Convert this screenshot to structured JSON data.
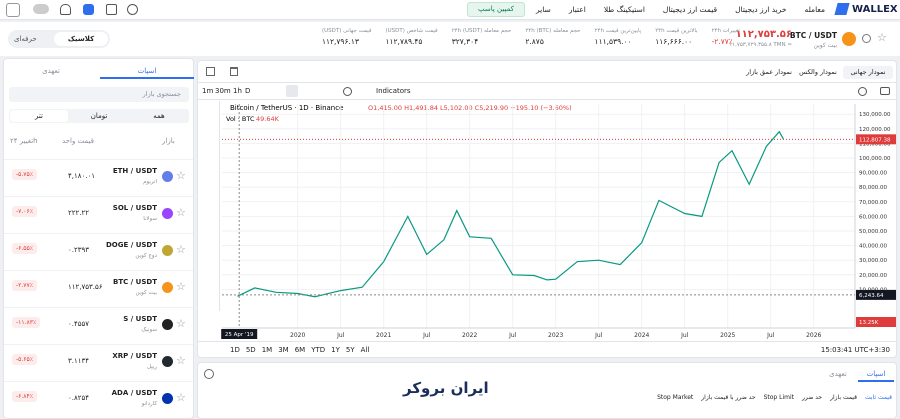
{
  "header": {
    "brand": "WALLEX",
    "nav": [
      "معامله",
      "خرید ارز دیجیتال",
      "قیمت ارز دیجیتال",
      "استیکینگ طلا",
      "اعتبار",
      "سایر"
    ],
    "campaign": "کمپین پاسپ"
  },
  "ticker": {
    "symbol": "BTC / USDT",
    "name": "بیت کوین",
    "price": "۱۱۲,۷۵۳.۵۶",
    "price_tmn": "۱۱,۷۵۳,۷۲۹,۳۵۵.۸ TMN ≈",
    "stats": [
      {
        "label": "تغییرات ۲۴h",
        "value": "-۲.۷۷٪"
      },
      {
        "label": "بالاترین قیمت ۲۴h",
        "value": "۱۱۶,۶۶۶.۰۰"
      },
      {
        "label": "پایین‌ترین قیمت ۲۴h",
        "value": "۱۱۱,۵۳۹.۰۰"
      },
      {
        "label": "حجم معامله ۲۴h (BTC)",
        "value": "۲.۸۷۵"
      },
      {
        "label": "حجم معامله ۲۴h (USDT)",
        "value": "۳۲۷,۳۰۴"
      },
      {
        "label": "قیمت شاخص (USDT)",
        "value": "۱۱۲,۷۸۹.۴۵"
      },
      {
        "label": "قیمت جهانی (USDT)",
        "value": "۱۱۲,۷۹۶.۱۳"
      }
    ],
    "modes": [
      "کلاسیک",
      "حرفه‌ای"
    ]
  },
  "market_list": {
    "tabs": [
      "اسپات",
      "تعهدی"
    ],
    "search": "جستجوی بازار",
    "filters": [
      "همه",
      "تومان",
      "تتر"
    ],
    "headers": [
      "بازار",
      "قیمت واحد",
      "تغییر ۲۴h"
    ],
    "rows": [
      {
        "symbol": "ETH / USDT",
        "name": "اتریوم",
        "price": "۴,۱۸۰.۰۱",
        "change": "-۵.۷۵٪",
        "color": "#627eea"
      },
      {
        "symbol": "SOL / USDT",
        "name": "سولانا",
        "price": "۲۲۲.۲۲",
        "change": "-۷.۰۶٪",
        "color": "#9945ff"
      },
      {
        "symbol": "DOGE / USDT",
        "name": "دوج کوین",
        "price": "۰.۲۳۹۳",
        "change": "-۶.۵۵٪",
        "color": "#c2a633"
      },
      {
        "symbol": "BTC / USDT",
        "name": "بیت کوین",
        "price": "۱۱۲,۷۵۳.۵۶",
        "change": "-۲.۷۷٪",
        "color": "#f7931a"
      },
      {
        "symbol": "S / USDT",
        "name": "سونیک",
        "price": "۰.۴۵۵۷",
        "change": "-۱۱.۸۳٪",
        "color": "#222222"
      },
      {
        "symbol": "XRP / USDT",
        "name": "ریپل",
        "price": "۳.۱۱۳۴",
        "change": "-۵.۶۵٪",
        "color": "#23292f"
      },
      {
        "symbol": "ADA / USDT",
        "name": "کاردانو",
        "price": "۰.۸۲۵۴",
        "change": "-۶.۸۴٪",
        "color": "#0033ad"
      }
    ]
  },
  "chart_tabs": [
    "نمودار جهانی",
    "نمودار والکس",
    "نمودار عمق بازار"
  ],
  "toolbar": {
    "intervals": [
      "1m",
      "30m",
      "1h",
      "D"
    ],
    "indicators": "Indicators"
  },
  "price_chart": {
    "type": "line",
    "title": "Bitcoin / TetherUS · 1D · Binance",
    "ohlc": "O1,415.00 H1,491.84 L5,102.00 C5,219.90 −195.10 (−3.60%)",
    "volume_label": "Vol · BTC",
    "volume_value": "49.64K",
    "color": "#089981",
    "x": [
      2019.3,
      2019.5,
      2019.75,
      2020.0,
      2020.2,
      2020.5,
      2020.75,
      2021.0,
      2021.28,
      2021.5,
      2021.7,
      2021.85,
      2022.0,
      2022.25,
      2022.5,
      2022.75,
      2022.9,
      2023.0,
      2023.25,
      2023.5,
      2023.75,
      2024.0,
      2024.2,
      2024.5,
      2024.7,
      2024.9,
      2025.05,
      2025.25,
      2025.45,
      2025.6,
      2025.65
    ],
    "values": [
      5300,
      11000,
      8000,
      7200,
      5000,
      9200,
      11500,
      29000,
      60000,
      34000,
      44000,
      64000,
      46000,
      45000,
      20000,
      19500,
      16500,
      17000,
      29000,
      30000,
      27000,
      42000,
      71000,
      62000,
      60000,
      97000,
      105000,
      82000,
      108000,
      118000,
      112753
    ],
    "xlim": [
      2019.12,
      2026.48
    ],
    "ylim": [
      0,
      137000
    ],
    "xticks": [
      {
        "value": 2020,
        "label": "2020"
      },
      {
        "value": 2020.5,
        "label": "Jul"
      },
      {
        "value": 2021,
        "label": "2021"
      },
      {
        "value": 2021.5,
        "label": "Jul"
      },
      {
        "value": 2022,
        "label": "2022"
      },
      {
        "value": 2022.5,
        "label": "Jul"
      },
      {
        "value": 2023,
        "label": "2023"
      },
      {
        "value": 2023.5,
        "label": "Jul"
      },
      {
        "value": 2024,
        "label": "2024"
      },
      {
        "value": 2024.5,
        "label": "Jul"
      },
      {
        "value": 2025,
        "label": "2025"
      },
      {
        "value": 2025.5,
        "label": "Jul"
      },
      {
        "value": 2026,
        "label": "2026"
      }
    ],
    "yticks": [
      {
        "value": 10000,
        "label": "10,000.00"
      },
      {
        "value": 20000,
        "label": "20,000.00"
      },
      {
        "value": 30000,
        "label": "30,000.00"
      },
      {
        "value": 40000,
        "label": "40,000.00"
      },
      {
        "value": 50000,
        "label": "50,000.00"
      },
      {
        "value": 60000,
        "label": "60,000.00"
      },
      {
        "value": 70000,
        "label": "70,000.00"
      },
      {
        "value": 80000,
        "label": "80,000.00"
      },
      {
        "value": 90000,
        "label": "90,000.00"
      },
      {
        "value": 100000,
        "label": "100,000.00"
      },
      {
        "value": 110000,
        "label": "110,000.00"
      },
      {
        "value": 120000,
        "label": "120,000.00"
      },
      {
        "value": 130000,
        "label": "130,000.00"
      }
    ],
    "last_price": {
      "value": 112807.38,
      "label": "112,807.38"
    },
    "crosshair_price": {
      "value": 6243.64,
      "label": "6,243.64"
    },
    "crosshair_date": {
      "value": 2019.32,
      "label": "25 Apr '19"
    },
    "volume_marker": "13.25K",
    "grid": true
  },
  "ranges": [
    "1D",
    "5D",
    "1M",
    "3M",
    "6M",
    "YTD",
    "1Y",
    "5Y",
    "All"
  ],
  "clock": "15:03:41 UTC+3:30",
  "order_panel": {
    "tabs": [
      "اسپات",
      "تعهدی"
    ],
    "types": [
      "قیمت ثابت",
      "قیمت بازار",
      "حد ضرر",
      "Stop Limit",
      "حد ضرر با قیمت بازار",
      "Stop Market"
    ]
  },
  "watermark": "ایران بروکر"
}
